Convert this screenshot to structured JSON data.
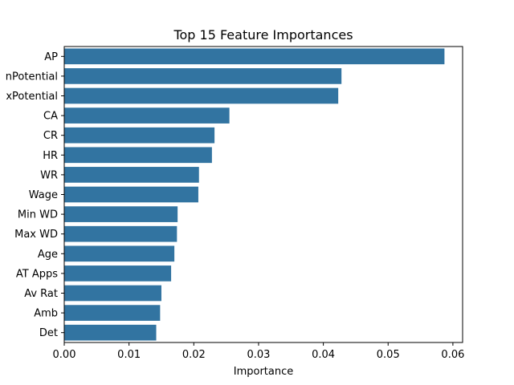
{
  "chart_data": {
    "type": "bar",
    "orientation": "horizontal",
    "title": "Top 15 Feature Importances",
    "xlabel": "Importance",
    "ylabel": "",
    "xlim": [
      0,
      0.0615
    ],
    "xticks": [
      0.0,
      0.01,
      0.02,
      0.03,
      0.04,
      0.05,
      0.06
    ],
    "xtick_labels": [
      "0.00",
      "0.01",
      "0.02",
      "0.03",
      "0.04",
      "0.05",
      "0.06"
    ],
    "grid": false,
    "bar_color": "#3274a1",
    "categories": [
      "AP",
      "MinPotential",
      "MaxPotential",
      "CA",
      "CR",
      "HR",
      "WR",
      "Wage",
      "Min WD",
      "Max WD",
      "Age",
      "AT Apps",
      "Av Rat",
      "Amb",
      "Det"
    ],
    "category_labels": [
      "AP",
      "nPotential",
      "xPotential",
      "CA",
      "CR",
      "HR",
      "WR",
      "Wage",
      "Min WD",
      "Max WD",
      "Age",
      "AT Apps",
      "Av Rat",
      "Amb",
      "Det"
    ],
    "values": [
      0.0587,
      0.0428,
      0.0423,
      0.0255,
      0.0232,
      0.0228,
      0.0208,
      0.0207,
      0.0175,
      0.0174,
      0.017,
      0.0165,
      0.015,
      0.0148,
      0.0142
    ]
  }
}
